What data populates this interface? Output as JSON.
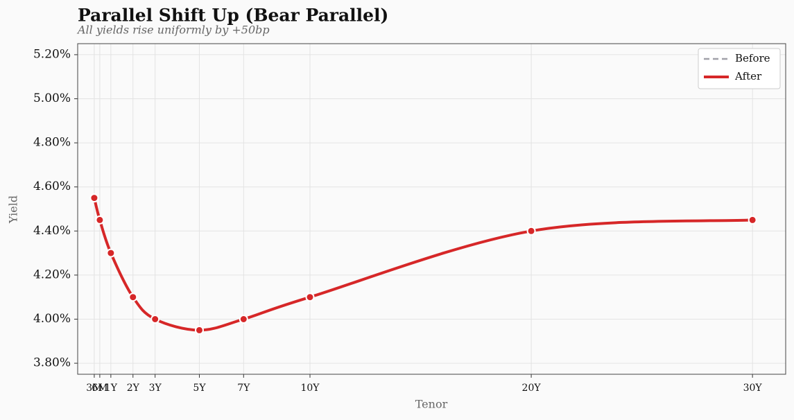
{
  "chart_data": {
    "type": "line",
    "title": "Parallel Shift Up (Bear Parallel)",
    "subtitle": "All yields rise uniformly by +50bp",
    "x_label": "Tenor",
    "y_label": "Yield",
    "x": [
      0.25,
      0.5,
      1,
      2,
      3,
      5,
      7,
      10,
      20,
      30
    ],
    "series": [
      {
        "name": "Before",
        "color": "#a0a0a8",
        "dashed": true,
        "values": [
          null,
          null,
          null,
          null,
          null,
          null,
          null,
          null,
          null,
          null
        ]
      },
      {
        "name": "After",
        "color": "#d62728",
        "dashed": false,
        "values": [
          4.55,
          4.45,
          4.3,
          4.1,
          4.0,
          3.95,
          4.0,
          4.1,
          4.4,
          4.45
        ]
      }
    ],
    "xlim": [
      -0.5,
      31.5
    ],
    "xticks": [
      {
        "value": 0.25,
        "label": "3M"
      },
      {
        "value": 0.5,
        "label": "6M"
      },
      {
        "value": 1,
        "label": "1Y"
      },
      {
        "value": 2,
        "label": "2Y"
      },
      {
        "value": 3,
        "label": "3Y"
      },
      {
        "value": 5,
        "label": "5Y"
      },
      {
        "value": 7,
        "label": "7Y"
      },
      {
        "value": 10,
        "label": "10Y"
      },
      {
        "value": 20,
        "label": "20Y"
      },
      {
        "value": 30,
        "label": "30Y"
      }
    ],
    "ylim": [
      3.75,
      5.25
    ],
    "yticks": [
      {
        "value": 3.8,
        "label": "3.80%"
      },
      {
        "value": 4.0,
        "label": "4.00%"
      },
      {
        "value": 4.2,
        "label": "4.20%"
      },
      {
        "value": 4.4,
        "label": "4.40%"
      },
      {
        "value": 4.6,
        "label": "4.60%"
      },
      {
        "value": 4.8,
        "label": "4.80%"
      },
      {
        "value": 5.0,
        "label": "5.00%"
      },
      {
        "value": 5.2,
        "label": "5.20%"
      }
    ],
    "grid": true,
    "legend": "upper right"
  }
}
